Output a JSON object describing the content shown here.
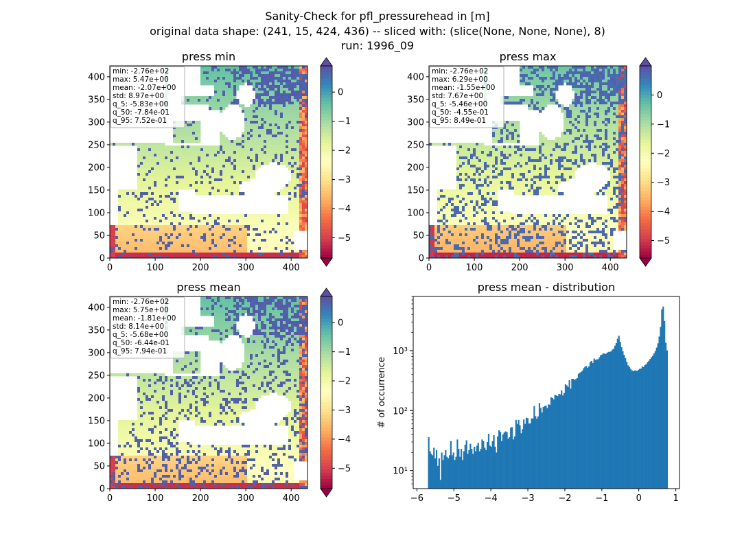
{
  "figure": {
    "title_lines": [
      "Sanity-Check for pfl_pressurehead in [m]",
      "original data shape: (241, 15, 424, 436) -- sliced with: (slice(None, None, None), 8)",
      "run: 1996_09"
    ]
  },
  "colors": {
    "colormap": [
      "#9e0142",
      "#d53e4f",
      "#f46d43",
      "#fdae61",
      "#fee08b",
      "#ffffbf",
      "#e6f598",
      "#abdda4",
      "#66c2a5",
      "#3288bd",
      "#5e4fa2"
    ],
    "histogram": "#1f77b4",
    "stats_box_edge": "#b0b0b0"
  },
  "chart_data": [
    {
      "type": "heatmap",
      "title": "press min",
      "x_ticks": [
        "0",
        "100",
        "200",
        "300",
        "400"
      ],
      "y_ticks": [
        "0",
        "50",
        "100",
        "150",
        "200",
        "250",
        "300",
        "350",
        "400"
      ],
      "xlim": [
        0,
        436
      ],
      "ylim": [
        0,
        424
      ],
      "colorbar": {
        "ticks": [
          "0",
          "−1",
          "−2",
          "−3",
          "−4",
          "−5"
        ],
        "tick_values": [
          0,
          -1,
          -2,
          -3,
          -4,
          -5
        ],
        "range": [
          -5.7,
          0.9
        ],
        "extend": "both"
      },
      "stats": [
        "min: -2.76e+02",
        "max: 5.47e+00",
        "mean: -2.07e+00",
        "std: 8.97e+00",
        "q_5: -5.83e+00",
        "q_50: -7.84e-01",
        "q_95: 7.52e-01"
      ]
    },
    {
      "type": "heatmap",
      "title": "press max",
      "x_ticks": [
        "0",
        "100",
        "200",
        "300",
        "400"
      ],
      "y_ticks": [
        "0",
        "50",
        "100",
        "150",
        "200",
        "250",
        "300",
        "350",
        "400"
      ],
      "xlim": [
        0,
        436
      ],
      "ylim": [
        0,
        424
      ],
      "colorbar": {
        "ticks": [
          "0",
          "−1",
          "−2",
          "−3",
          "−4",
          "−5"
        ],
        "tick_values": [
          0,
          -1,
          -2,
          -3,
          -4,
          -5
        ],
        "range": [
          -5.6,
          1.0
        ],
        "extend": "both"
      },
      "stats": [
        "min: -2.76e+02",
        "max: 6.29e+00",
        "mean: -1.55e+00",
        "std: 7.67e+00",
        "q_5: -5.46e+00",
        "q_50: -4.55e-01",
        "q_95: 8.49e-01"
      ]
    },
    {
      "type": "heatmap",
      "title": "press mean",
      "x_ticks": [
        "0",
        "100",
        "200",
        "300",
        "400"
      ],
      "y_ticks": [
        "0",
        "50",
        "100",
        "150",
        "200",
        "250",
        "300",
        "350",
        "400"
      ],
      "xlim": [
        0,
        436
      ],
      "ylim": [
        0,
        424
      ],
      "colorbar": {
        "ticks": [
          "0",
          "−1",
          "−2",
          "−3",
          "−4",
          "−5"
        ],
        "tick_values": [
          0,
          -1,
          -2,
          -3,
          -4,
          -5
        ],
        "range": [
          -5.7,
          0.9
        ],
        "extend": "both"
      },
      "stats": [
        "min: -2.76e+02",
        "max: 5.75e+00",
        "mean: -1.81e+00",
        "std: 8.14e+00",
        "q_5: -5.68e+00",
        "q_50: -6.44e-01",
        "q_95: 7.94e-01"
      ]
    },
    {
      "type": "bar",
      "title": "press mean - distribution",
      "ylabel": "# of occurrence",
      "y_scale": "log",
      "xlim": [
        -6.1,
        1.1
      ],
      "ylim": [
        5,
        8000
      ],
      "x_ticks": [
        "−6",
        "−5",
        "−4",
        "−3",
        "−2",
        "−1",
        "0",
        "1"
      ],
      "x_tick_values": [
        -6,
        -5,
        -4,
        -3,
        -2,
        -1,
        0,
        1
      ],
      "y_ticks": [
        "10¹",
        "10²",
        "10³"
      ],
      "y_tick_values": [
        10,
        100,
        1000
      ],
      "bin_range": [
        -5.7,
        0.78
      ],
      "counts": [
        36,
        21,
        19,
        18,
        24,
        16,
        22,
        12,
        16,
        7,
        20,
        15,
        18,
        22,
        17,
        16,
        18,
        31,
        18,
        20,
        15,
        17,
        33,
        23,
        17,
        23,
        15,
        21,
        27,
        32,
        19,
        22,
        28,
        23,
        19,
        25,
        21,
        26,
        29,
        21,
        23,
        33,
        31,
        24,
        22,
        30,
        41,
        26,
        25,
        31,
        39,
        25,
        20,
        37,
        47,
        44,
        31,
        40,
        43,
        45,
        44,
        34,
        36,
        52,
        53,
        33,
        37,
        70,
        60,
        70,
        57,
        42,
        49,
        71,
        60,
        76,
        75,
        61,
        61,
        74,
        74,
        119,
        81,
        73,
        80,
        134,
        111,
        93,
        115,
        119,
        121,
        110,
        127,
        125,
        166,
        162,
        154,
        183,
        179,
        175,
        190,
        186,
        218,
        179,
        196,
        274,
        264,
        248,
        320,
        232,
        338,
        339,
        325,
        334,
        348,
        410,
        428,
        442,
        464,
        509,
        538,
        554,
        518,
        547,
        648,
        674,
        623,
        737,
        700,
        717,
        717,
        774,
        838,
        858,
        900,
        895,
        879,
        923,
        953,
        954,
        971,
        1042,
        1076,
        1211,
        1333,
        1577,
        1768,
        1407,
        1142,
        975,
        852,
        751,
        651,
        569,
        538,
        498,
        468,
        453,
        467,
        467,
        457,
        480,
        496,
        502,
        544,
        534,
        577,
        592,
        639,
        677,
        725,
        777,
        822,
        899,
        989,
        1123,
        1320,
        1716,
        2490,
        4863,
        5420,
        3100,
        1350,
        1010
      ]
    }
  ]
}
